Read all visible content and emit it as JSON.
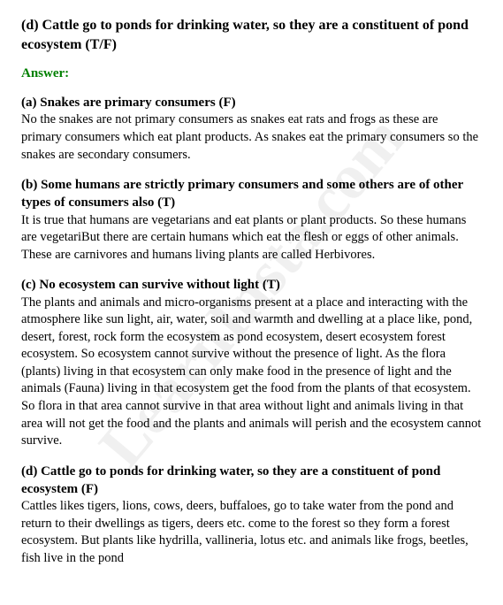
{
  "watermark": "LearnInsta.com",
  "question_d": "(d) Cattle go to ponds for drinking water, so they are a constituent of pond ecosystem (T/F)",
  "answer_label": "Answer:",
  "items": {
    "a": {
      "heading": "(a) Snakes are primary consumers (F)",
      "body": "No the snakes are not primary consumers as snakes eat rats and frogs as these are primary consumers which eat plant products. As snakes eat the primary consumers so the snakes are secondary consumers."
    },
    "b": {
      "heading": "(b) Some humans are strictly primary consumers and some others are of other types of consumers also (T)",
      "body": "It is true that humans are vegetarians and eat plants or plant products. So these humans are vegetariBut there are certain humans which eat the flesh or eggs of other animals. These are carnivores and humans living plants are called Herbivores."
    },
    "c": {
      "heading": "(c) No ecosystem can survive without light (T)",
      "body": "The plants and animals and micro-organisms present at a place and interacting with the atmosphere like sun light, air, water, soil and warmth and dwelling at a place like, pond, desert, forest, rock form the ecosystem as pond ecosystem, desert ecosystem forest ecosystem. So ecosystem cannot survive without the presence of light. As the flora (plants) living in that ecosystem can only make food in the presence of light and the animals (Fauna) living in that ecosystem get the food from the plants of that ecosystem. So flora in that area cannot survive in that area without light and animals living in that area will not get the food and the plants and animals will perish and the ecosystem cannot survive."
    },
    "d": {
      "heading": "(d) Cattle go to ponds for drinking water, so they are a constituent of pond ecosystem (F)",
      "body": "Cattles likes tigers, lions, cows, deers, buffaloes, go to take water from the pond and return to their dwellings as tigers, deers etc. come to the forest so they form a forest ecosystem. But plants like hydrilla, vallineria, lotus etc. and animals like frogs, beetles, fish live in the pond"
    }
  }
}
